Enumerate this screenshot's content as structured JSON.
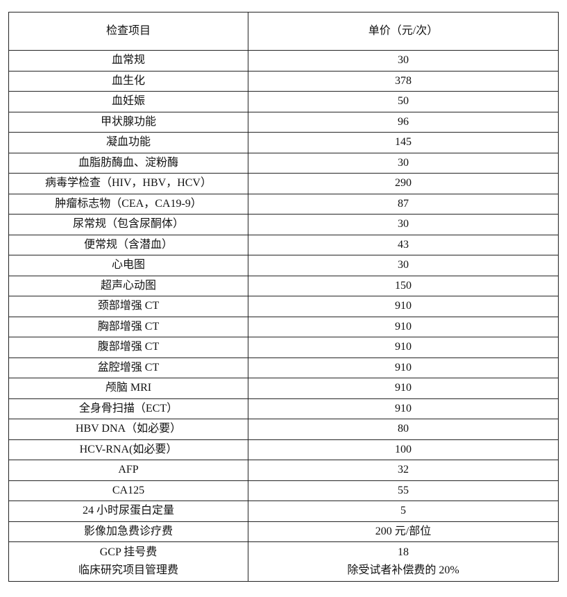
{
  "table": {
    "headers": [
      "检查项目",
      "单价（元/次）"
    ],
    "rows": [
      [
        "血常规",
        "30"
      ],
      [
        "血生化",
        "378"
      ],
      [
        "血妊娠",
        "50"
      ],
      [
        "甲状腺功能",
        "96"
      ],
      [
        "凝血功能",
        "145"
      ],
      [
        "血脂肪酶血、淀粉酶",
        "30"
      ],
      [
        "病毒学检查（HIV，HBV，HCV）",
        "290"
      ],
      [
        "肿瘤标志物（CEA，CA19-9）",
        "87"
      ],
      [
        "尿常规（包含尿酮体）",
        "30"
      ],
      [
        "便常规（含潜血）",
        "43"
      ],
      [
        "心电图",
        "30"
      ],
      [
        "超声心动图",
        "150"
      ],
      [
        "颈部增强 CT",
        "910"
      ],
      [
        "胸部增强 CT",
        "910"
      ],
      [
        "腹部增强 CT",
        "910"
      ],
      [
        "盆腔增强 CT",
        "910"
      ],
      [
        "颅脑 MRI",
        "910"
      ],
      [
        "全身骨扫描（ECT）",
        "910"
      ],
      [
        "HBV DNA（如必要）",
        "80"
      ],
      [
        "HCV-RNA(如必要）",
        "100"
      ],
      [
        "AFP",
        "32"
      ],
      [
        "CA125",
        "55"
      ],
      [
        "24 小时尿蛋白定量",
        "5"
      ],
      [
        "影像加急费诊疗费",
        "200 元/部位"
      ]
    ],
    "last_row": {
      "items": [
        "GCP 挂号费",
        "临床研究项目管理费"
      ],
      "prices": [
        "18",
        "除受试者补偿费的 20%"
      ]
    }
  }
}
